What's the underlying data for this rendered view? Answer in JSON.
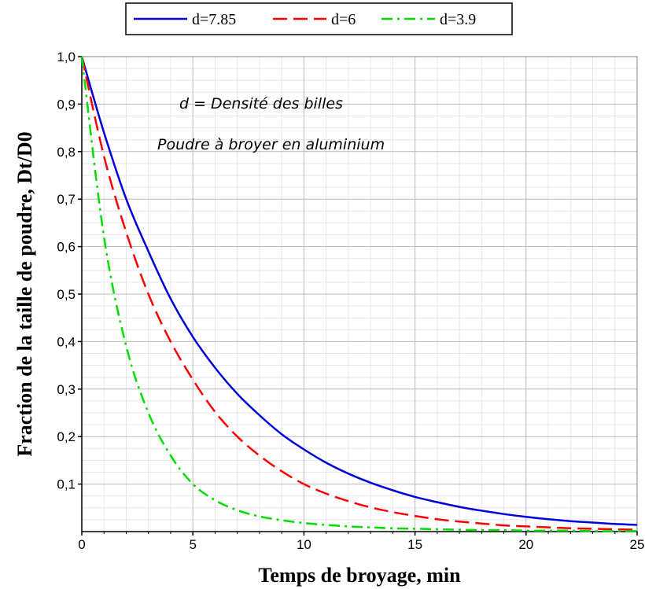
{
  "chart_data": {
    "type": "line",
    "title": "",
    "xlabel": "Temps de broyage, min",
    "ylabel": "Fraction de la taille de poudre, Dt/D0",
    "xlim": [
      0,
      25
    ],
    "ylim": [
      0,
      1.0
    ],
    "x_ticks": [
      "0",
      "5",
      "10",
      "15",
      "20",
      "25"
    ],
    "y_ticks": [
      "0,1",
      "0,2",
      "0,3",
      "0,4",
      "0,5",
      "0,6",
      "0,7",
      "0,8",
      "0,9",
      "1,0"
    ],
    "grid": true,
    "legend_position": "top-center",
    "annotations": [
      "d = Densité des billes",
      "Poudre à broyer en aluminium"
    ],
    "x": [
      0,
      1,
      2,
      3,
      4,
      5,
      6,
      7,
      8,
      9,
      10,
      11,
      12,
      13,
      14,
      15,
      16,
      17,
      18,
      19,
      20,
      21,
      22,
      23,
      24,
      25
    ],
    "series": [
      {
        "name": "d=7.85",
        "color": "#0000dd",
        "style": "solid",
        "values": [
          1.0,
          0.84,
          0.7,
          0.59,
          0.49,
          0.41,
          0.345,
          0.29,
          0.245,
          0.205,
          0.173,
          0.145,
          0.122,
          0.103,
          0.087,
          0.073,
          0.062,
          0.052,
          0.044,
          0.037,
          0.031,
          0.026,
          0.022,
          0.019,
          0.016,
          0.014
        ]
      },
      {
        "name": "d=6",
        "color": "#ff0000",
        "style": "dash",
        "values": [
          1.0,
          0.79,
          0.63,
          0.5,
          0.4,
          0.32,
          0.252,
          0.2,
          0.16,
          0.127,
          0.1,
          0.08,
          0.064,
          0.051,
          0.041,
          0.033,
          0.026,
          0.021,
          0.017,
          0.013,
          0.011,
          0.009,
          0.007,
          0.006,
          0.005,
          0.004
        ]
      },
      {
        "name": "d=3.9",
        "color": "#00dd00",
        "style": "dashdot",
        "values": [
          1.0,
          0.62,
          0.39,
          0.25,
          0.16,
          0.1,
          0.066,
          0.045,
          0.032,
          0.024,
          0.018,
          0.014,
          0.011,
          0.009,
          0.007,
          0.006,
          0.005,
          0.004,
          0.003,
          0.003,
          0.002,
          0.002,
          0.002,
          0.001,
          0.001,
          0.001
        ]
      }
    ]
  }
}
